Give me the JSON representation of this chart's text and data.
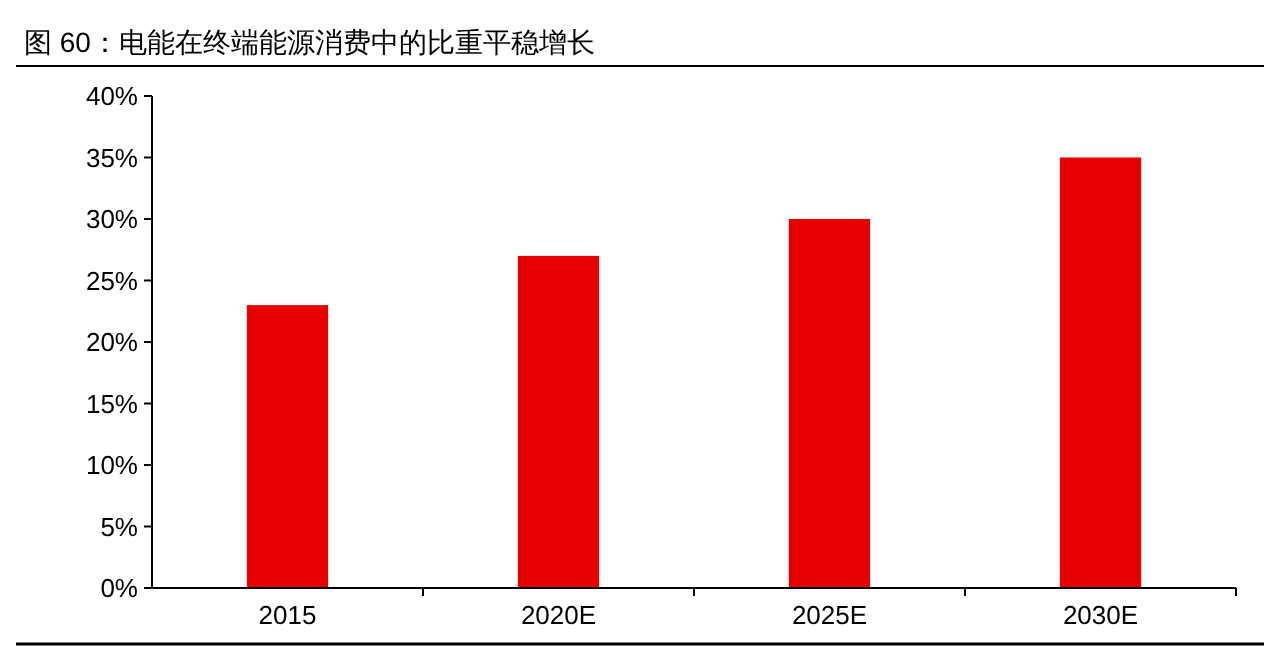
{
  "chart_data": {
    "type": "bar",
    "title": "图 60：电能在终端能源消费中的比重平稳增长",
    "categories": [
      "2015",
      "2020E",
      "2025E",
      "2030E"
    ],
    "values": [
      23,
      27,
      30,
      35
    ],
    "color": "#e60000",
    "ylim": [
      0,
      40
    ],
    "yticks": [
      {
        "value": 0,
        "label": "0%"
      },
      {
        "value": 5,
        "label": "5%"
      },
      {
        "value": 10,
        "label": "10%"
      },
      {
        "value": 15,
        "label": "15%"
      },
      {
        "value": 20,
        "label": "20%"
      },
      {
        "value": 25,
        "label": "25%"
      },
      {
        "value": 30,
        "label": "30%"
      },
      {
        "value": 35,
        "label": "35%"
      },
      {
        "value": 40,
        "label": "40%"
      }
    ],
    "grid": false
  }
}
